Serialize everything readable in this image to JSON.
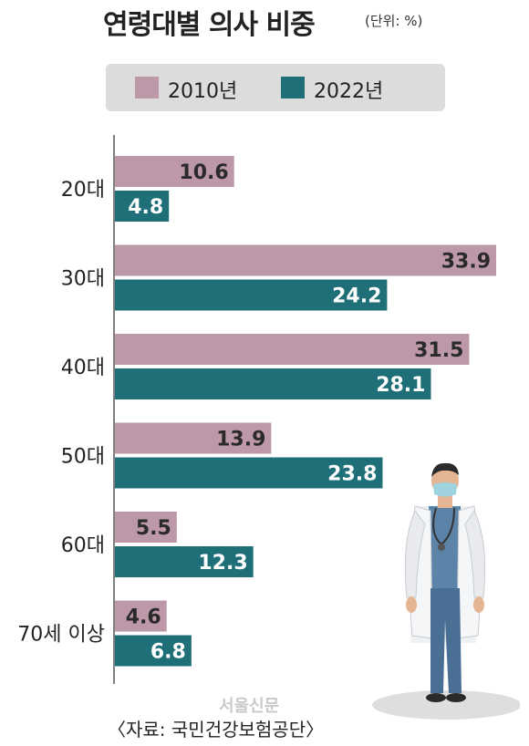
{
  "chart_data": {
    "type": "bar",
    "orientation": "horizontal",
    "title": "연령대별 의사 비중",
    "unit_label": "(단위: %)",
    "categories": [
      "20대",
      "30대",
      "40대",
      "50대",
      "60대",
      "70세 이상"
    ],
    "series": [
      {
        "name": "2010년",
        "color": "#bc98a8",
        "values": [
          10.6,
          33.9,
          31.5,
          13.9,
          5.5,
          4.6
        ],
        "labels": [
          "10.6",
          "33.9",
          "31.5",
          "13.9",
          "5.5",
          "4.6"
        ]
      },
      {
        "name": "2022년",
        "color": "#1f6f78",
        "values": [
          4.8,
          24.2,
          28.1,
          23.8,
          12.3,
          6.8
        ],
        "labels": [
          "4.8",
          "24.2",
          "28.1",
          "23.8",
          "12.3",
          "6.8"
        ]
      }
    ],
    "xlim": [
      0,
      35
    ],
    "legend_position": "top",
    "grid": false
  },
  "source": "〈자료: 국민건강보험공단〉",
  "brand": "서울신문",
  "illustration": "doctor-icon"
}
